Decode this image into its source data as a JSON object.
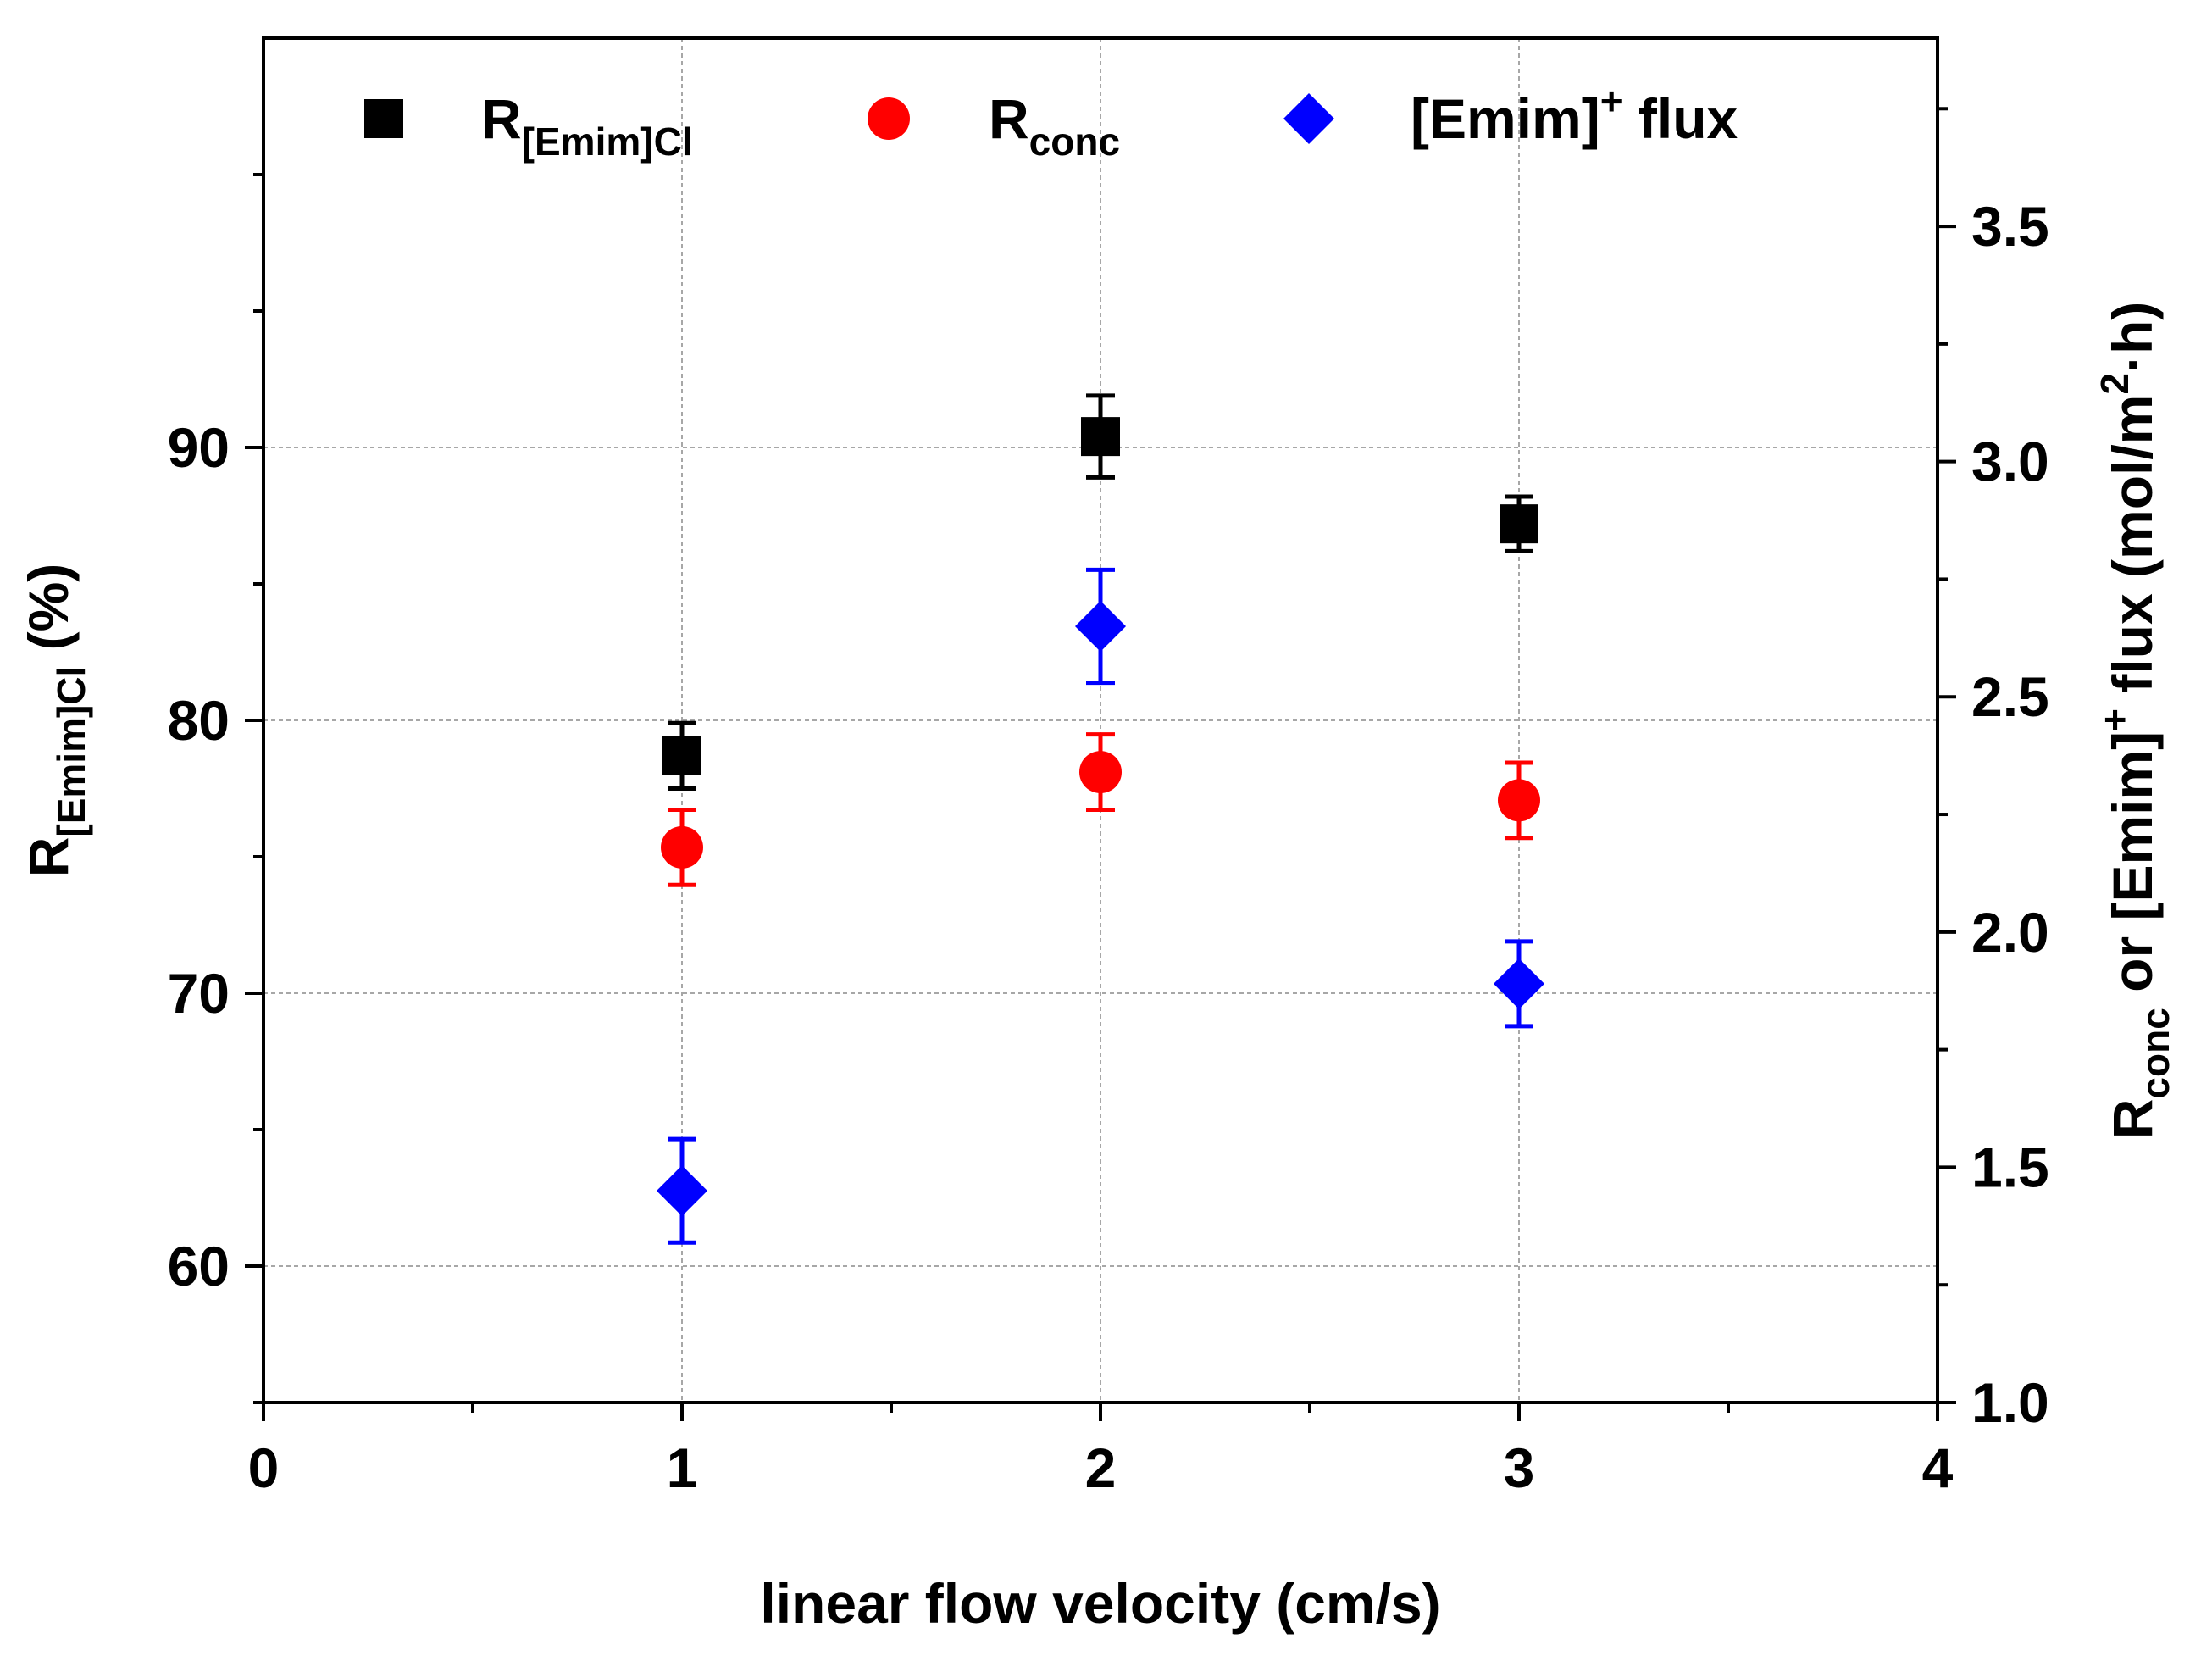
{
  "chart_data": {
    "type": "scatter",
    "x": [
      1,
      2,
      3
    ],
    "xlabel": "linear flow velocity (cm/s)",
    "xlim": [
      0,
      4
    ],
    "xticks": [
      "0",
      "1",
      "2",
      "3",
      "4"
    ],
    "ylabel_left": {
      "main": "R",
      "sub": "[Emim]Cl",
      "suffix": " (%)"
    },
    "ylim_left": [
      55,
      105
    ],
    "yticks_left": [
      "60",
      "70",
      "80",
      "90"
    ],
    "ylabel_right": {
      "main": "R",
      "sub": "conc",
      "mid": " or [Emim]",
      "sup": "+",
      "mid2": " flux (mol/m",
      "sup2": "2",
      "end": "·h)"
    },
    "ylim_right": [
      1.0,
      3.9
    ],
    "yticks_right": [
      "1.0",
      "1.5",
      "2.0",
      "2.5",
      "3.0",
      "3.5"
    ],
    "grid": true,
    "legend_position": "top",
    "series": [
      {
        "name": "R[Emim]Cl",
        "legend_main": "R",
        "legend_sub": "[Emim]Cl",
        "legend_sup": "",
        "legend_suffix": "",
        "axis": "left",
        "marker": "square",
        "color": "#000000",
        "values": [
          78.7,
          90.4,
          87.2
        ],
        "errors": [
          1.2,
          1.5,
          1.0
        ]
      },
      {
        "name": "Rconc",
        "legend_main": "R",
        "legend_sub": "conc",
        "legend_sup": "",
        "legend_suffix": "",
        "axis": "right",
        "marker": "circle",
        "color": "#ff0000",
        "values": [
          2.18,
          2.34,
          2.28
        ],
        "errors": [
          0.08,
          0.08,
          0.08
        ]
      },
      {
        "name": "[Emim]+ flux",
        "legend_main": "[Emim]",
        "legend_sub": "",
        "legend_sup": "+",
        "legend_suffix": " flux",
        "axis": "right",
        "marker": "diamond",
        "color": "#0000ff",
        "values": [
          1.45,
          2.65,
          1.89
        ],
        "errors": [
          0.11,
          0.12,
          0.09
        ]
      }
    ]
  }
}
